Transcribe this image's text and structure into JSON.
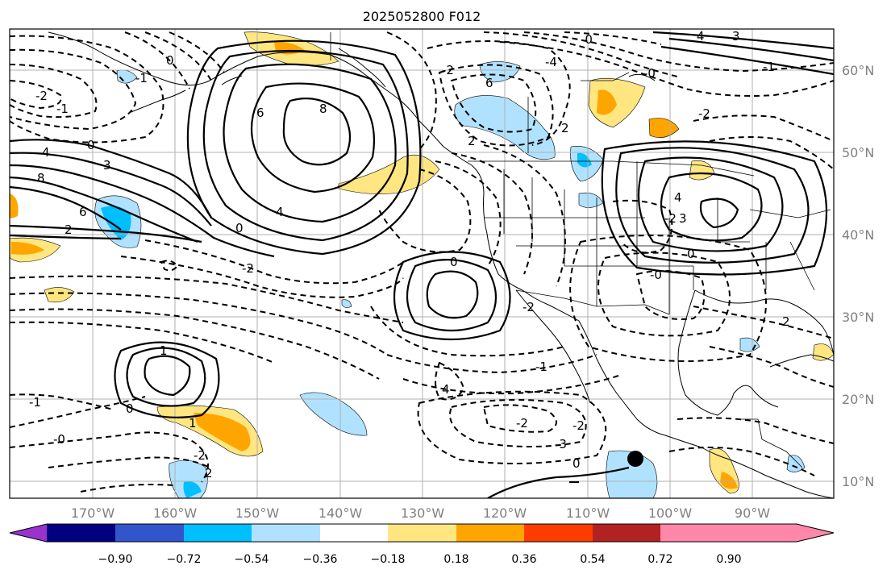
{
  "title": "2025052800 F012",
  "lat_labels": [
    "60°N",
    "50°N",
    "40°N",
    "30°N",
    "20°N",
    "10°N"
  ],
  "lon_labels": [
    "170°W",
    "160°W",
    "150°W",
    "140°W",
    "130°W",
    "120°W",
    "110°W",
    "100°W",
    "90°W"
  ],
  "colorbar": {
    "ticks": [
      "−0.90",
      "−0.72",
      "−0.54",
      "−0.36",
      "−0.18",
      "0.18",
      "0.36",
      "0.54",
      "0.72",
      "0.90"
    ],
    "colors": [
      "#9933cc",
      "#000080",
      "#3355cc",
      "#00bfff",
      "#b0e2ff",
      "#ffffff",
      "#ffe680",
      "#ffa500",
      "#ff3c00",
      "#b22222",
      "#ff88aa"
    ]
  },
  "contour_labels": [
    "0",
    "-2",
    "-1",
    "8",
    "6",
    "4",
    "3",
    "2",
    "0",
    "6",
    "4",
    "8",
    "0",
    "-2",
    "-1",
    "2",
    "-2",
    "6",
    "-0",
    "-4",
    "3",
    "-1",
    "4",
    "-2",
    "2",
    "4",
    "3",
    "-0",
    "0",
    "-2",
    "-2",
    "-1",
    "-2",
    "-0",
    "0",
    "1",
    "-1",
    "0",
    "-0",
    "-2",
    "2",
    "1",
    "-2",
    "4",
    "-3",
    "0",
    "2"
  ],
  "map_theme": {
    "land_border_color": "#000000",
    "grid_color": "#b0b0b0",
    "positive_fill_colors": [
      "#ffe680",
      "#ffa500",
      "#ff3c00"
    ],
    "negative_fill_colors": [
      "#b0e2ff",
      "#00bfff"
    ],
    "station_marker_color": "#000000"
  }
}
